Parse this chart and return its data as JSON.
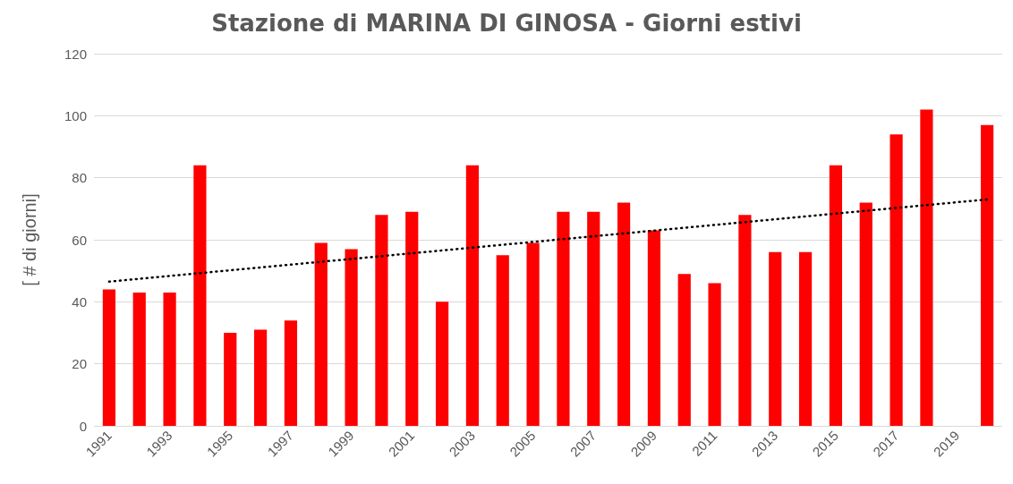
{
  "chart_data": {
    "type": "bar",
    "title": "Stazione di MARINA DI GINOSA - Giorni estivi",
    "ylabel": "[ # di giorni]",
    "categories": [
      "1991",
      null,
      "1993",
      null,
      "1995",
      null,
      "1997",
      null,
      "1999",
      null,
      "2001",
      null,
      "2003",
      null,
      "2005",
      null,
      "2007",
      null,
      "2009",
      null,
      "2011",
      null,
      "2013",
      null,
      "2015",
      null,
      "2017",
      null,
      "2019",
      null
    ],
    "series": [
      {
        "color": "#ff0000",
        "values": [
          44,
          43,
          43,
          84,
          30,
          31,
          34,
          59,
          57,
          68,
          69,
          40,
          84,
          55,
          59,
          69,
          69,
          72,
          63,
          49,
          46,
          68,
          56,
          56,
          84,
          72,
          94,
          102,
          null,
          97
        ]
      },
      {
        "type": "line",
        "color": "#000000",
        "line_style": "dotted",
        "marker": "none",
        "values": [
          46.5,
          null,
          null,
          null,
          null,
          null,
          null,
          null,
          null,
          null,
          null,
          null,
          null,
          null,
          null,
          null,
          null,
          null,
          null,
          null,
          null,
          null,
          null,
          null,
          null,
          null,
          null,
          null,
          null,
          73
        ]
      }
    ],
    "ylim": [
      0,
      120
    ],
    "yticks": [
      0,
      20,
      40,
      60,
      80,
      100,
      120
    ],
    "grid": "y"
  }
}
